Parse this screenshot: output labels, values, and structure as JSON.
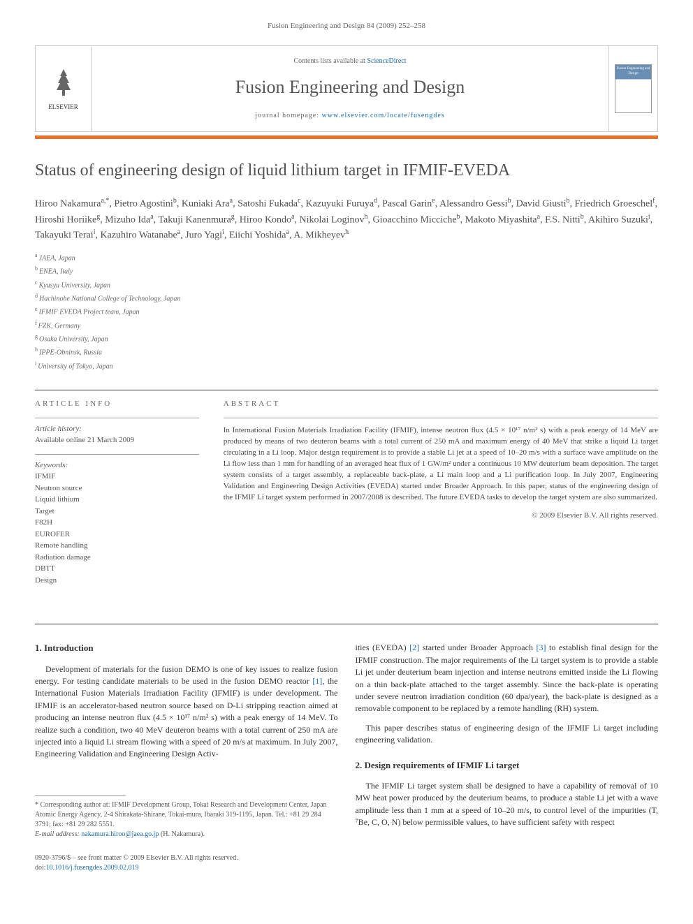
{
  "page_header": "Fusion Engineering and Design 84 (2009) 252–258",
  "banner": {
    "contents_text": "Contents lists available at ",
    "contents_link": "ScienceDirect",
    "journal_name": "Fusion Engineering and Design",
    "homepage_label": "journal homepage: ",
    "homepage_url": "www.elsevier.com/locate/fusengdes",
    "elsevier_label": "ELSEVIER",
    "cover_text": "Fusion Engineering and Design"
  },
  "title": "Status of engineering design of liquid lithium target in IFMIF-EVEDA",
  "authors": [
    {
      "name": "Hiroo Nakamura",
      "sup": "a,*"
    },
    {
      "name": "Pietro Agostini",
      "sup": "b"
    },
    {
      "name": "Kuniaki Ara",
      "sup": "a"
    },
    {
      "name": "Satoshi Fukada",
      "sup": "c"
    },
    {
      "name": "Kazuyuki Furuya",
      "sup": "d"
    },
    {
      "name": "Pascal Garin",
      "sup": "e"
    },
    {
      "name": "Alessandro Gessi",
      "sup": "b"
    },
    {
      "name": "David Giusti",
      "sup": "b"
    },
    {
      "name": "Friedrich Groeschel",
      "sup": "f"
    },
    {
      "name": "Hiroshi Horiike",
      "sup": "g"
    },
    {
      "name": "Mizuho Ida",
      "sup": "a"
    },
    {
      "name": "Takuji Kanenmura",
      "sup": "g"
    },
    {
      "name": "Hiroo Kondo",
      "sup": "a"
    },
    {
      "name": "Nikolai Loginov",
      "sup": "h"
    },
    {
      "name": "Gioacchino Micciche",
      "sup": "b"
    },
    {
      "name": "Makoto Miyashita",
      "sup": "a"
    },
    {
      "name": "F.S. Nitti",
      "sup": "b"
    },
    {
      "name": "Akihiro Suzuki",
      "sup": "i"
    },
    {
      "name": "Takayuki Terai",
      "sup": "i"
    },
    {
      "name": "Kazuhiro Watanabe",
      "sup": "a"
    },
    {
      "name": "Juro Yagi",
      "sup": "i"
    },
    {
      "name": "Eiichi Yoshida",
      "sup": "a"
    },
    {
      "name": "A. Mikheyev",
      "sup": "h"
    }
  ],
  "affiliations": [
    {
      "sup": "a",
      "text": "JAEA, Japan"
    },
    {
      "sup": "b",
      "text": "ENEA, Italy"
    },
    {
      "sup": "c",
      "text": "Kyusyu University, Japan"
    },
    {
      "sup": "d",
      "text": "Hachinohe National College of Technology, Japan"
    },
    {
      "sup": "e",
      "text": "IFMIF EVEDA Project team, Japan"
    },
    {
      "sup": "f",
      "text": "FZK, Germany"
    },
    {
      "sup": "g",
      "text": "Osaka University, Japan"
    },
    {
      "sup": "h",
      "text": "IPPE-Obninsk, Russia"
    },
    {
      "sup": "i",
      "text": "University of Tokyo, Japan"
    }
  ],
  "article_info": {
    "header": "ARTICLE INFO",
    "history_label": "Article history:",
    "history_text": "Available online 21 March 2009",
    "keywords_label": "Keywords:",
    "keywords": [
      "IFMIF",
      "Neutron source",
      "Liquid lithium",
      "Target",
      "F82H",
      "EUROFER",
      "Remote handling",
      "Radiation damage",
      "DBTT",
      "Design"
    ]
  },
  "abstract": {
    "header": "ABSTRACT",
    "text": "In International Fusion Materials Irradiation Facility (IFMIF), intense neutron flux (4.5 × 10¹⁷ n/m² s) with a peak energy of 14 MeV are produced by means of two deuteron beams with a total current of 250 mA and maximum energy of 40 MeV that strike a liquid Li target circulating in a Li loop. Major design requirement is to provide a stable Li jet at a speed of 10–20 m/s with a surface wave amplitude on the Li flow less than 1 mm for handling of an averaged heat flux of 1 GW/m² under a continuous 10 MW deuterium beam deposition. The target system consists of a target assembly, a replaceable back-plate, a Li main loop and a Li purification loop. In July 2007, Engineering Validation and Engineering Design Activities (EVEDA) started under Broader Approach. In this paper, status of the engineering design of the IFMIF Li target system performed in 2007/2008 is described. The future EVEDA tasks to develop the target system are also summarized.",
    "copyright": "© 2009 Elsevier B.V. All rights reserved."
  },
  "sections": {
    "intro_heading": "1. Introduction",
    "intro_p1": "Development of materials for the fusion DEMO is one of key issues to realize fusion energy. For testing candidate materials to be used in the fusion DEMO reactor [1], the International Fusion Materials Irradiation Facility (IFMIF) is under development. The IFMIF is an accelerator-based neutron source based on D-Li stripping reaction aimed at producing an intense neutron flux (4.5 × 10¹⁷ n/m² s) with a peak energy of 14 MeV. To realize such a condition, two 40 MeV deuteron beams with a total current of 250 mA are injected into a liquid Li stream flowing with a speed of 20 m/s at maximum. In July 2007, Engineering Validation and Engineering Design Activ-",
    "intro_p2": "ities (EVEDA) [2] started under Broader Approach [3] to establish final design for the IFMIF construction. The major requirements of the Li target system is to provide a stable Li jet under deuterium beam injection and intense neutrons emitted inside the Li flowing on a thin back-plate attached to the target assembly. Since the back-plate is operating under severe neutron irradiation condition (60 dpa/year), the back-plate is designed as a removable component to be replaced by a remote handling (RH) system.",
    "intro_p3": "This paper describes status of engineering design of the IFMIF Li target including engineering validation.",
    "design_heading": "2. Design requirements of IFMIF Li target",
    "design_p1": "The IFMIF Li target system shall be designed to have a capability of removal of 10 MW heat power produced by the deuterium beams, to produce a stable Li jet with a wave amplitude less than 1 mm at a speed of 10–20 m/s, to control level of the impurities (T, ⁷Be, C, O, N) below permissible values, to have sufficient safety with respect"
  },
  "footnote": {
    "corresponding": "* Corresponding author at: IFMIF Development Group, Tokai Research and Development Center, Japan Atomic Energy Agency, 2-4 Shirakata-Shirane, Tokai-mura, Ibaraki 319-1195, Japan. Tel.: +81 29 284 3791; fax: +81 29 282 5551.",
    "email_label": "E-mail address: ",
    "email": "nakamura.hiroo@jaea.go.jp",
    "email_name": " (H. Nakamura)."
  },
  "footer": {
    "line1": "0920-3796/$ – see front matter © 2009 Elsevier B.V. All rights reserved.",
    "doi_label": "doi:",
    "doi": "10.1016/j.fusengdes.2009.02.019"
  },
  "colors": {
    "orange_bar": "#e8702a",
    "link_color": "#1a6ba8",
    "text_gray": "#505050",
    "border_gray": "#ccc"
  }
}
